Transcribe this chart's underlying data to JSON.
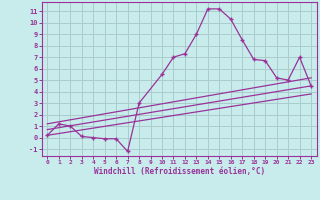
{
  "xlabel": "Windchill (Refroidissement éolien,°C)",
  "background_color": "#c8ecec",
  "grid_color": "#aacccc",
  "line_color": "#993399",
  "xlim": [
    -0.5,
    23.5
  ],
  "ylim": [
    -1.6,
    11.8
  ],
  "xticks": [
    0,
    1,
    2,
    3,
    4,
    5,
    6,
    7,
    8,
    9,
    10,
    11,
    12,
    13,
    14,
    15,
    16,
    17,
    18,
    19,
    20,
    21,
    22,
    23
  ],
  "yticks": [
    -1,
    0,
    1,
    2,
    3,
    4,
    5,
    6,
    7,
    8,
    9,
    10,
    11
  ],
  "line1_x": [
    0,
    1,
    2,
    3,
    4,
    5,
    6,
    7,
    8,
    10,
    11,
    12,
    13,
    14,
    15,
    16,
    17,
    18,
    19,
    20,
    21,
    22,
    23
  ],
  "line1_y": [
    0.2,
    1.2,
    1.0,
    0.1,
    0.0,
    -0.1,
    -0.1,
    -1.2,
    3.0,
    5.5,
    7.0,
    7.3,
    9.0,
    11.2,
    11.2,
    10.3,
    8.5,
    6.8,
    6.7,
    5.2,
    5.0,
    7.0,
    4.5
  ],
  "line2_x": [
    0,
    23
  ],
  "line2_y": [
    1.2,
    5.2
  ],
  "line3_x": [
    0,
    23
  ],
  "line3_y": [
    0.7,
    4.5
  ],
  "line4_x": [
    0,
    23
  ],
  "line4_y": [
    0.2,
    3.8
  ]
}
